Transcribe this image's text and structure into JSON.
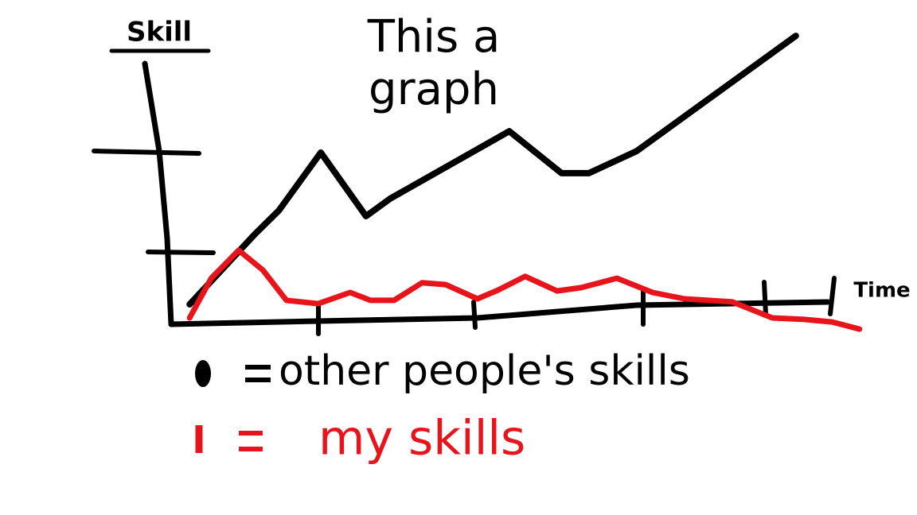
{
  "chart_data": {
    "type": "line",
    "title": "This a graph",
    "x_label": "Time",
    "y_label": "Skill",
    "xlim": [
      0,
      11
    ],
    "ylim": [
      -1,
      12
    ],
    "series": [
      {
        "name": "other people's skills",
        "color": "#000000",
        "x": [
          0.29,
          1.31,
          1.69,
          2.35,
          3.06,
          3.44,
          5.31,
          6.13,
          6.56,
          7.31,
          9.81
        ],
        "values": [
          0.78,
          3.53,
          4.47,
          6.75,
          4.25,
          4.94,
          7.59,
          5.94,
          5.94,
          6.81,
          11.34
        ]
      },
      {
        "name": "my skills",
        "color": "#e8141c",
        "x": [
          0.29,
          0.63,
          1.06,
          1.44,
          1.81,
          2.31,
          2.81,
          3.13,
          3.5,
          3.94,
          4.31,
          4.81,
          5.13,
          5.56,
          6.06,
          6.44,
          7.0,
          7.56,
          8.06,
          8.81,
          9.44,
          9.94,
          10.38,
          10.81
        ],
        "values": [
          0.25,
          1.81,
          2.91,
          2.13,
          0.94,
          0.81,
          1.25,
          0.94,
          0.94,
          1.63,
          1.56,
          1.0,
          1.34,
          1.88,
          1.31,
          1.44,
          1.81,
          1.25,
          1.0,
          0.88,
          0.25,
          0.19,
          0.09,
          -0.19
        ]
      }
    ]
  }
}
